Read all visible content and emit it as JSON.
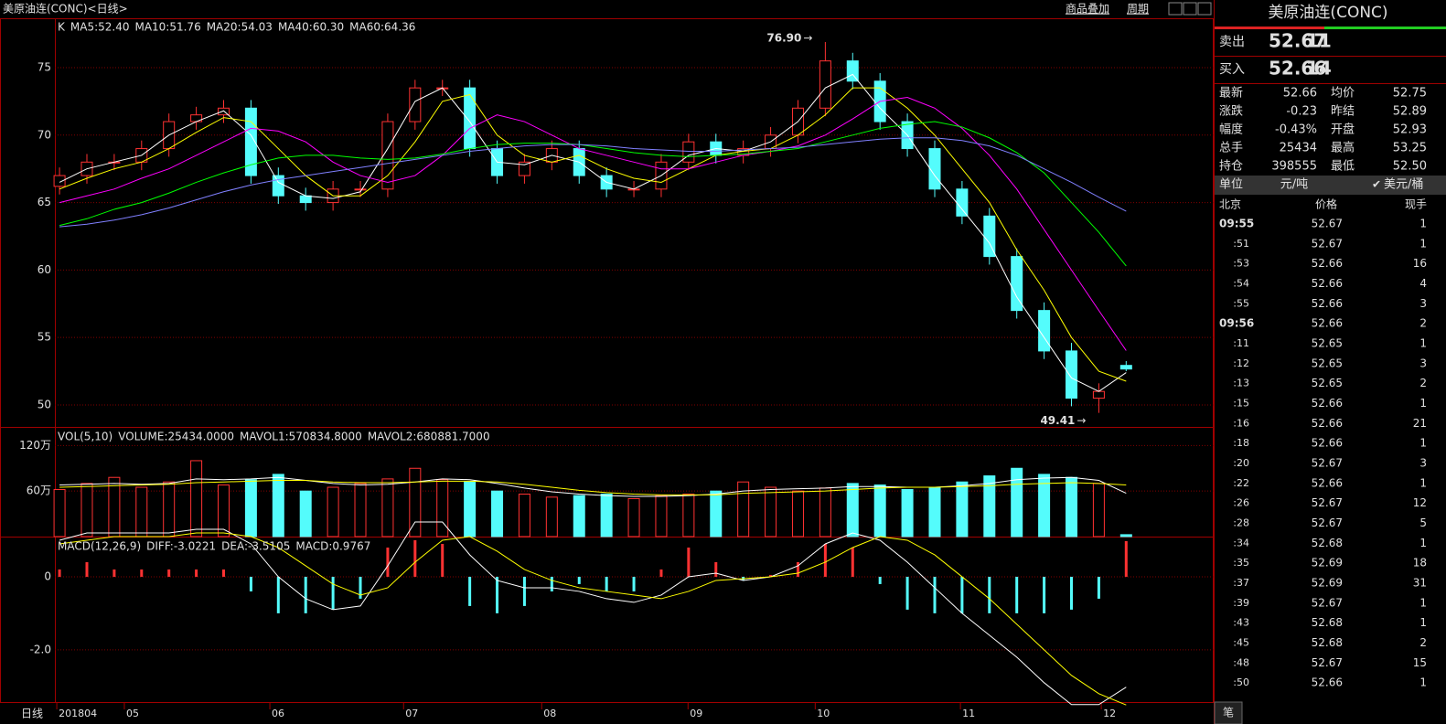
{
  "header": {
    "title": "美原油连(CONC)<日线>",
    "links": [
      "商品叠加",
      "周期"
    ]
  },
  "chart_data": [
    {
      "type": "candlestick",
      "legend_prefix": "K",
      "up_color": "#ff3232",
      "down_color": "#54fcfc",
      "open": [
        66.2,
        67,
        68,
        68,
        69,
        71,
        71.5,
        72,
        67,
        65.5,
        65,
        66,
        66,
        71,
        73.5,
        73.5,
        69,
        67,
        68,
        69,
        67,
        66,
        66,
        68,
        69.5,
        68.5,
        69,
        70,
        72,
        75.5,
        74,
        71,
        69,
        66,
        64,
        61,
        57,
        54,
        50.5,
        52.93
      ],
      "high": [
        67.6,
        68.6,
        68.6,
        69.6,
        71.6,
        72.1,
        72.6,
        72.6,
        67.6,
        66.1,
        66.6,
        66.6,
        71.6,
        74.1,
        74.1,
        74.1,
        69.6,
        68.6,
        69.6,
        69.6,
        67.6,
        66.6,
        68.6,
        70.1,
        70.1,
        69.6,
        70.6,
        72.6,
        76.9,
        76.1,
        74.6,
        71.6,
        69.6,
        66.6,
        64.6,
        61.6,
        57.6,
        54.6,
        51.6,
        53.25
      ],
      "low": [
        65.6,
        66.4,
        67.4,
        67.4,
        68.4,
        70.4,
        70.9,
        66.4,
        64.9,
        64.4,
        64.4,
        65.4,
        65.4,
        70.4,
        72.9,
        68.4,
        66.4,
        66.4,
        67.4,
        66.4,
        65.4,
        65.4,
        65.4,
        67.4,
        67.9,
        67.9,
        68.4,
        69.4,
        71.4,
        73.4,
        70.4,
        68.4,
        65.4,
        63.4,
        60.4,
        56.4,
        53.4,
        49.9,
        49.41,
        52.5
      ],
      "close": [
        67,
        68,
        68,
        69,
        71,
        71.5,
        72,
        67,
        65.5,
        65,
        66,
        66,
        71,
        73.5,
        73.5,
        69,
        67,
        68,
        69,
        67,
        66,
        66,
        68,
        69.5,
        68.5,
        69,
        70,
        72,
        75.5,
        74,
        71,
        69,
        66,
        64,
        61,
        57,
        54,
        50.5,
        51,
        52.66
      ],
      "ma": [
        {
          "name": "MA5:52.40",
          "color": "#ffffff",
          "values": [
            66.5,
            67.5,
            68,
            68.5,
            70,
            71,
            71.8,
            70,
            66.5,
            65.5,
            65.3,
            65.8,
            69,
            72.5,
            73.5,
            71,
            68,
            67.8,
            68.5,
            68,
            66.5,
            66,
            67,
            68.5,
            69,
            68.8,
            69.5,
            71,
            73.5,
            74.5,
            72,
            70,
            67,
            64.5,
            62,
            58,
            55,
            52,
            51,
            52.4
          ]
        },
        {
          "name": "MA10:51.76",
          "color": "#ffff00",
          "values": [
            66,
            66.8,
            67.5,
            68,
            69,
            70.2,
            71.3,
            71,
            69,
            67,
            65.5,
            65.5,
            67,
            69.5,
            72.5,
            73,
            70,
            68.5,
            68,
            68.5,
            67.5,
            66.8,
            66.5,
            67.5,
            68.5,
            68.8,
            69,
            70,
            71.5,
            73.5,
            73.5,
            72,
            70,
            67.5,
            65,
            61.5,
            58.5,
            55,
            52.5,
            51.76
          ]
        },
        {
          "name": "MA20:54.03",
          "color": "#ff00ff",
          "values": [
            65,
            65.5,
            66,
            66.8,
            67.5,
            68.5,
            69.5,
            70.5,
            70.3,
            69.5,
            68,
            67,
            66.5,
            67,
            68.5,
            70.5,
            71.5,
            71,
            70,
            69,
            68.5,
            68,
            67.5,
            67.5,
            68,
            68.5,
            68.8,
            69.2,
            70,
            71.2,
            72.5,
            72.8,
            72,
            70.5,
            68.5,
            66,
            63,
            60,
            57,
            54.03
          ]
        },
        {
          "name": "MA40:60.30",
          "color": "#00ff00",
          "values": [
            63.3,
            63.8,
            64.5,
            65,
            65.7,
            66.5,
            67.2,
            67.8,
            68.3,
            68.5,
            68.5,
            68.3,
            68.2,
            68.3,
            68.6,
            69,
            69.3,
            69.4,
            69.4,
            69.3,
            69,
            68.7,
            68.5,
            68.4,
            68.5,
            68.6,
            68.8,
            69,
            69.5,
            70,
            70.5,
            70.8,
            71,
            70.6,
            69.8,
            68.7,
            67.2,
            65,
            62.8,
            60.3
          ]
        },
        {
          "name": "MA60:64.36",
          "color": "#8080ff",
          "values": [
            63.2,
            63.4,
            63.7,
            64.1,
            64.6,
            65.2,
            65.8,
            66.3,
            66.7,
            67,
            67.3,
            67.6,
            67.9,
            68.2,
            68.5,
            68.8,
            69,
            69.2,
            69.3,
            69.3,
            69.2,
            69,
            68.9,
            68.8,
            68.8,
            68.9,
            69,
            69.1,
            69.3,
            69.5,
            69.7,
            69.8,
            69.8,
            69.6,
            69.2,
            68.5,
            67.5,
            66.5,
            65.4,
            64.36
          ]
        }
      ],
      "ylim": [
        48.37,
        78.66
      ],
      "yticks": [
        50,
        55,
        60,
        65,
        70,
        75
      ],
      "xlim": [
        -0.17,
        42.2
      ],
      "annotations": [
        {
          "text": "76.90",
          "index": 28,
          "value": 76.9
        },
        {
          "text": "49.41",
          "index": 38,
          "value": 49.41
        }
      ]
    },
    {
      "type": "volume",
      "title": "VOL(5,10)",
      "ylim": [
        0,
        1445000
      ],
      "yticks": [
        {
          "value": 1200000,
          "label": "120万"
        },
        {
          "value": 600000,
          "label": "60万"
        }
      ],
      "series": [
        {
          "name": "VOLUME:25434.0000",
          "color": "#ffffff",
          "values": [
            620000,
            700000,
            780000,
            650000,
            720000,
            1000000,
            680000,
            750000,
            820000,
            600000,
            650000,
            700000,
            760000,
            900000,
            750000,
            720000,
            600000,
            560000,
            520000,
            540000,
            560000,
            500000,
            540000,
            560000,
            600000,
            720000,
            650000,
            600000,
            640000,
            700000,
            680000,
            620000,
            650000,
            720000,
            800000,
            900000,
            820000,
            780000,
            700000,
            25434
          ]
        },
        {
          "name": "MAVOL1:570834.8000",
          "color": "#ffffff",
          "values": [
            680000,
            690000,
            700000,
            690000,
            700000,
            760000,
            750000,
            760000,
            780000,
            740000,
            700000,
            680000,
            690000,
            720000,
            760000,
            750000,
            700000,
            640000,
            590000,
            560000,
            540000,
            530000,
            530000,
            540000,
            560000,
            600000,
            620000,
            630000,
            640000,
            660000,
            660000,
            650000,
            650000,
            670000,
            700000,
            750000,
            770000,
            780000,
            740000,
            570834.8
          ]
        },
        {
          "name": "MAVOL2:680881.7000",
          "color": "#ffff00",
          "values": [
            650000,
            660000,
            670000,
            680000,
            690000,
            710000,
            720000,
            730000,
            740000,
            740000,
            720000,
            710000,
            710000,
            720000,
            730000,
            730000,
            720000,
            690000,
            650000,
            610000,
            580000,
            560000,
            550000,
            550000,
            550000,
            570000,
            580000,
            590000,
            600000,
            620000,
            640000,
            650000,
            650000,
            660000,
            670000,
            690000,
            700000,
            710000,
            700000,
            680881.7
          ]
        }
      ]
    },
    {
      "type": "macd",
      "title": "MACD(12,26,9)",
      "ylim": [
        -3.43,
        1.1
      ],
      "yticks": [
        0,
        {
          "value": -2,
          "label": "-2.0"
        }
      ],
      "series": [
        {
          "name": "DIFF:-3.0221",
          "color": "#ffffff",
          "values": [
            1.0,
            1.2,
            1.2,
            1.2,
            1.2,
            1.3,
            1.3,
            0.9,
            0.0,
            -0.6,
            -0.9,
            -0.8,
            0.3,
            1.5,
            1.5,
            0.6,
            -0.1,
            -0.3,
            -0.3,
            -0.4,
            -0.6,
            -0.7,
            -0.5,
            0.0,
            0.1,
            -0.1,
            0.0,
            0.3,
            0.9,
            1.2,
            1.0,
            0.4,
            -0.3,
            -1.0,
            -1.6,
            -2.2,
            -2.9,
            -3.5,
            -3.5,
            -3.0221
          ]
        },
        {
          "name": "DEA:-3.5105",
          "color": "#ffff00",
          "values": [
            0.9,
            1.0,
            1.1,
            1.1,
            1.1,
            1.2,
            1.2,
            1.1,
            0.8,
            0.3,
            -0.2,
            -0.5,
            -0.3,
            0.4,
            1.0,
            1.1,
            0.7,
            0.2,
            -0.1,
            -0.3,
            -0.4,
            -0.5,
            -0.6,
            -0.4,
            -0.1,
            -0.05,
            0.0,
            0.1,
            0.4,
            0.8,
            1.1,
            1.0,
            0.6,
            0.0,
            -0.6,
            -1.3,
            -2.0,
            -2.7,
            -3.2,
            -3.5105
          ]
        },
        {
          "name": "MACD:0.9767",
          "color": "#ff3232",
          "values": [
            0.2,
            0.4,
            0.2,
            0.2,
            0.2,
            0.2,
            0.2,
            -0.4,
            -1.0,
            -1.0,
            -0.9,
            -0.6,
            0.8,
            1.0,
            0.9,
            -0.8,
            -1.0,
            -0.8,
            -0.4,
            -0.2,
            -0.4,
            -0.4,
            0.2,
            0.8,
            0.4,
            -0.1,
            0.05,
            0.4,
            0.9,
            0.8,
            -0.2,
            -0.9,
            -1.0,
            -1.0,
            -1.0,
            -1.0,
            -1.0,
            -0.9,
            -0.6,
            0.9767
          ]
        }
      ]
    }
  ],
  "x_axis": {
    "label": "日线",
    "ticks": [
      {
        "value": -0.1,
        "label": "201804"
      },
      {
        "value": 2.37,
        "label": "05"
      },
      {
        "value": 7.69,
        "label": "06"
      },
      {
        "value": 12.58,
        "label": "07"
      },
      {
        "value": 17.63,
        "label": "08"
      },
      {
        "value": 22.98,
        "label": "09"
      },
      {
        "value": 27.63,
        "label": "10"
      },
      {
        "value": 32.94,
        "label": "11"
      },
      {
        "value": 38.09,
        "label": "12"
      }
    ]
  },
  "quote": {
    "title": "美原油连(CONC)",
    "ask": {
      "label": "卖出",
      "price": "52.67",
      "size": "11"
    },
    "bid": {
      "label": "买入",
      "price": "52.66",
      "size": "14"
    },
    "stats": [
      [
        {
          "label": "最新",
          "value": "52.66",
          "color": "#00e600"
        },
        {
          "label": "均价",
          "value": "52.75",
          "color": "#00e600"
        }
      ],
      [
        {
          "label": "涨跌",
          "value": "-0.23",
          "color": "#00e600"
        },
        {
          "label": "昨结",
          "value": "52.89",
          "color": "#e0e0e0"
        }
      ],
      [
        {
          "label": "幅度",
          "value": "-0.43%",
          "color": "#00e600"
        },
        {
          "label": "开盘",
          "value": "52.93",
          "color": "#ff3232"
        }
      ],
      [
        {
          "label": "总手",
          "value": "25434",
          "color": "#ffff00"
        },
        {
          "label": "最高",
          "value": "53.25",
          "color": "#ff3232"
        }
      ],
      [
        {
          "label": "持仓",
          "value": "398555",
          "color": "#ffff00"
        },
        {
          "label": "最低",
          "value": "52.50",
          "color": "#00e600"
        }
      ]
    ],
    "unit": {
      "label": "单位",
      "options": [
        "元/吨",
        "美元/桶"
      ]
    },
    "columns": [
      "北京",
      "价格",
      "现手"
    ],
    "ticks": [
      {
        "time": "09:55",
        "price": "52.67",
        "vol": "1",
        "color": "#ff3232"
      },
      {
        "time": ":51",
        "price": "52.67",
        "vol": "1",
        "color": "#ff3232"
      },
      {
        "time": ":53",
        "price": "52.66",
        "vol": "16",
        "color": "#00e600"
      },
      {
        "time": ":54",
        "price": "52.66",
        "vol": "4",
        "color": "#00e600"
      },
      {
        "time": ":55",
        "price": "52.66",
        "vol": "3",
        "color": "#00e600"
      },
      {
        "time": "09:56",
        "price": "52.66",
        "vol": "2",
        "color": "#ff3232"
      },
      {
        "time": ":11",
        "price": "52.65",
        "vol": "1",
        "color": "#00e600"
      },
      {
        "time": ":12",
        "price": "52.65",
        "vol": "3",
        "color": "#00e600"
      },
      {
        "time": ":13",
        "price": "52.65",
        "vol": "2",
        "color": "#00e600"
      },
      {
        "time": ":15",
        "price": "52.66",
        "vol": "1",
        "color": "#ff3232"
      },
      {
        "time": ":16",
        "price": "52.66",
        "vol": "21",
        "color": "#ff3232"
      },
      {
        "time": ":18",
        "price": "52.66",
        "vol": "1",
        "color": "#00e600"
      },
      {
        "time": ":20",
        "price": "52.67",
        "vol": "3",
        "color": "#ff3232"
      },
      {
        "time": ":22",
        "price": "52.66",
        "vol": "1",
        "color": "#00e600"
      },
      {
        "time": ":26",
        "price": "52.67",
        "vol": "12",
        "color": "#ff3232"
      },
      {
        "time": ":28",
        "price": "52.67",
        "vol": "5",
        "color": "#ff3232"
      },
      {
        "time": ":34",
        "price": "52.68",
        "vol": "1",
        "color": "#ff3232"
      },
      {
        "time": ":35",
        "price": "52.69",
        "vol": "18",
        "color": "#ff3232"
      },
      {
        "time": ":37",
        "price": "52.69",
        "vol": "31",
        "color": "#ff3232"
      },
      {
        "time": ":39",
        "price": "52.67",
        "vol": "1",
        "color": "#00e600"
      },
      {
        "time": ":43",
        "price": "52.68",
        "vol": "1",
        "color": "#00e600"
      },
      {
        "time": ":45",
        "price": "52.68",
        "vol": "2",
        "color": "#ff3232"
      },
      {
        "time": ":48",
        "price": "52.67",
        "vol": "15",
        "color": "#00e600"
      },
      {
        "time": ":50",
        "price": "52.66",
        "vol": "1",
        "color": "#00e600"
      }
    ],
    "tab": "笔"
  }
}
